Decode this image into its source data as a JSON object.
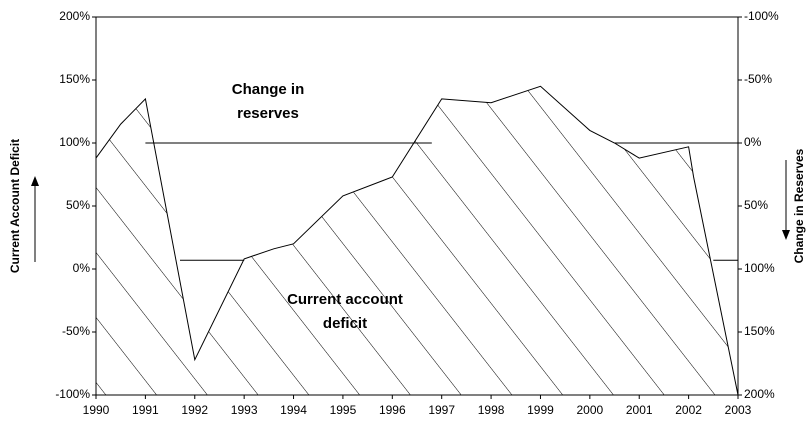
{
  "chart_data": {
    "type": "line",
    "y_label": "Current Account Deficit",
    "y2_label": "Change in Reserves",
    "annotations": [
      "Change in\nreserves",
      "Current account\ndeficit"
    ],
    "xlim": [
      1990,
      2003
    ],
    "xticks": [
      1990,
      1991,
      1992,
      1993,
      1994,
      1995,
      1996,
      1997,
      1998,
      1999,
      2000,
      2001,
      2002,
      2003
    ],
    "ylim": [
      -100,
      200
    ],
    "yticks": [
      {
        "value": -100,
        "label": "-100%"
      },
      {
        "value": -50,
        "label": "-50%"
      },
      {
        "value": 0,
        "label": "0%"
      },
      {
        "value": 50,
        "label": "50%"
      },
      {
        "value": 100,
        "label": "100%"
      },
      {
        "value": 150,
        "label": "150%"
      },
      {
        "value": 200,
        "label": "200%"
      }
    ],
    "y2lim": [
      200,
      -100
    ],
    "y2ticks": [
      {
        "value": -100,
        "label": "-100%"
      },
      {
        "value": -50,
        "label": "-50%"
      },
      {
        "value": 0,
        "label": "0%"
      },
      {
        "value": 50,
        "label": "50%"
      },
      {
        "value": 100,
        "label": "100%"
      },
      {
        "value": 150,
        "label": "150%"
      },
      {
        "value": 200,
        "label": "200%"
      }
    ],
    "grid": false,
    "series": [
      {
        "name": "Current account deficit",
        "color": "#000000",
        "hatched": true,
        "x": [
          1990,
          1990.5,
          1991,
          1992,
          1993,
          1993.6,
          1994,
          1995,
          1996,
          1997,
          1998,
          1999,
          2000,
          2000.5,
          2001,
          2002,
          2002.1,
          2003
        ],
        "values": [
          88,
          115,
          135,
          -72,
          8,
          16,
          20,
          58,
          73,
          135,
          132,
          145,
          110,
          100,
          88,
          97,
          73,
          -100
        ]
      },
      {
        "name": "Change in reserves",
        "color": "#000000",
        "axis": "y2",
        "x": [
          1991,
          1996.8,
          1996.8,
          1991.7,
          1993,
          1993,
          2000.5,
          2003,
          2003,
          2002.5,
          2003
        ],
        "values": [
          0,
          0,
          null,
          93,
          93,
          null,
          0,
          0,
          null,
          93,
          93
        ]
      }
    ]
  }
}
